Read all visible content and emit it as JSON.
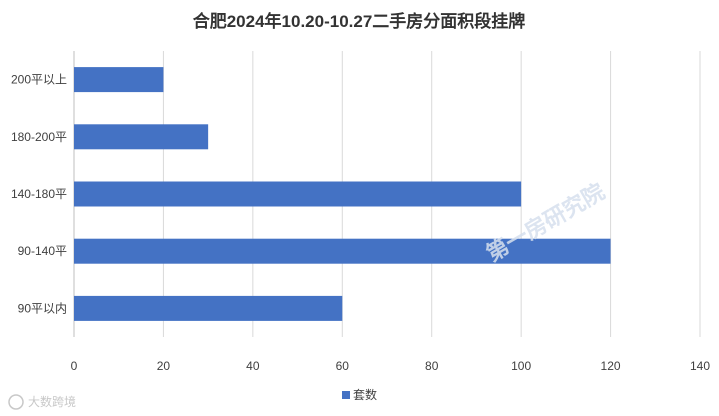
{
  "chart_data": {
    "type": "bar",
    "orientation": "horizontal",
    "title": "合肥2024年10.20-10.27二手房分面积段挂牌",
    "categories": [
      "200平以上",
      "180-200平",
      "140-180平",
      "90-140平",
      "90平以内"
    ],
    "series": [
      {
        "name": "套数",
        "values": [
          20,
          30,
          100,
          120,
          60
        ],
        "color": "#4472c4"
      }
    ],
    "xlim": [
      0,
      140
    ],
    "xticks": [
      0,
      20,
      40,
      60,
      80,
      100,
      120,
      140
    ],
    "grid": true,
    "legend_position": "bottom"
  },
  "watermark": "第一房研究院",
  "source_mark": "大数跨境"
}
